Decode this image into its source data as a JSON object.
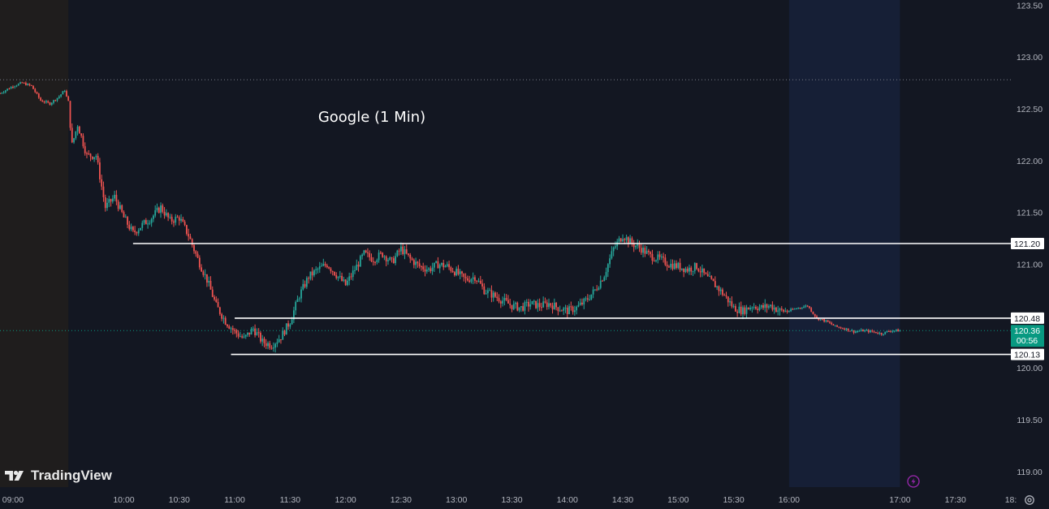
{
  "brand": {
    "name": "TradingView",
    "logo_icon": "tradingview-logo-icon"
  },
  "colors": {
    "background": "#131722",
    "up": "#26a69a",
    "down": "#ef5350",
    "premarket_shade": "#1f1d1d",
    "postmarket_shade": "#161f36",
    "level_line": "#ffffff",
    "price_tag": "#089981"
  },
  "chart_data": {
    "type": "candlestick",
    "title": "Google (1 Min)",
    "xlabel": "",
    "ylabel": "",
    "x_ticks": [
      "09:00",
      "10:00",
      "10:30",
      "11:00",
      "11:30",
      "12:00",
      "12:30",
      "13:00",
      "13:30",
      "14:00",
      "14:30",
      "15:00",
      "15:30",
      "16:00",
      "17:00",
      "17:30",
      "18:"
    ],
    "y_ticks": [
      "123.50",
      "123.00",
      "122.50",
      "122.00",
      "121.50",
      "121.00",
      "120.50",
      "120.00",
      "119.50",
      "119.00"
    ],
    "ylim": [
      118.85,
      123.55
    ],
    "xlim": [
      "08:53",
      "18:00"
    ],
    "grid": false,
    "sessions": {
      "premarket_end": "09:30",
      "regular_end": "16:00",
      "postmarket_end": "17:00"
    },
    "reference_lines": [
      {
        "value": 122.78,
        "style": "dotted",
        "label": ""
      },
      {
        "value": 120.36,
        "style": "dotted",
        "label": ""
      }
    ],
    "horizontal_levels": [
      {
        "value": 121.2,
        "label": "121.20",
        "from": "10:05",
        "to": "18:00"
      },
      {
        "value": 120.48,
        "label": "120.48",
        "from": "11:00",
        "to": "18:00"
      },
      {
        "value": 120.13,
        "label": "120.13",
        "from": "10:58",
        "to": "18:00"
      }
    ],
    "current_price": {
      "value": "120.36",
      "countdown": "00:56"
    },
    "price_path": [
      [
        "08:53",
        122.65
      ],
      [
        "09:00",
        122.72
      ],
      [
        "09:05",
        122.75
      ],
      [
        "09:10",
        122.72
      ],
      [
        "09:15",
        122.58
      ],
      [
        "09:20",
        122.55
      ],
      [
        "09:25",
        122.62
      ],
      [
        "09:28",
        122.68
      ],
      [
        "09:30",
        122.55
      ],
      [
        "09:32",
        122.15
      ],
      [
        "09:35",
        122.35
      ],
      [
        "09:40",
        122.05
      ],
      [
        "09:45",
        122.05
      ],
      [
        "09:50",
        121.55
      ],
      [
        "09:55",
        121.65
      ],
      [
        "10:00",
        121.45
      ],
      [
        "10:05",
        121.3
      ],
      [
        "10:10",
        121.38
      ],
      [
        "10:15",
        121.45
      ],
      [
        "10:20",
        121.55
      ],
      [
        "10:25",
        121.42
      ],
      [
        "10:30",
        121.45
      ],
      [
        "10:35",
        121.28
      ],
      [
        "10:40",
        121.05
      ],
      [
        "10:45",
        120.85
      ],
      [
        "10:50",
        120.6
      ],
      [
        "10:55",
        120.45
      ],
      [
        "11:00",
        120.35
      ],
      [
        "11:05",
        120.28
      ],
      [
        "11:10",
        120.38
      ],
      [
        "11:15",
        120.25
      ],
      [
        "11:20",
        120.22
      ],
      [
        "11:25",
        120.3
      ],
      [
        "11:30",
        120.45
      ],
      [
        "11:35",
        120.7
      ],
      [
        "11:40",
        120.88
      ],
      [
        "11:45",
        120.95
      ],
      [
        "11:50",
        121.0
      ],
      [
        "11:55",
        120.9
      ],
      [
        "12:00",
        120.8
      ],
      [
        "12:05",
        120.95
      ],
      [
        "12:10",
        121.1
      ],
      [
        "12:15",
        121.05
      ],
      [
        "12:20",
        121.1
      ],
      [
        "12:25",
        121.02
      ],
      [
        "12:30",
        121.15
      ],
      [
        "12:35",
        121.05
      ],
      [
        "12:40",
        120.98
      ],
      [
        "12:45",
        120.95
      ],
      [
        "12:50",
        121.0
      ],
      [
        "12:55",
        120.98
      ],
      [
        "13:00",
        120.92
      ],
      [
        "13:05",
        120.85
      ],
      [
        "13:10",
        120.88
      ],
      [
        "13:15",
        120.75
      ],
      [
        "13:20",
        120.7
      ],
      [
        "13:25",
        120.65
      ],
      [
        "13:30",
        120.6
      ],
      [
        "13:35",
        120.58
      ],
      [
        "13:40",
        120.62
      ],
      [
        "13:45",
        120.6
      ],
      [
        "13:50",
        120.62
      ],
      [
        "13:55",
        120.58
      ],
      [
        "14:00",
        120.55
      ],
      [
        "14:05",
        120.58
      ],
      [
        "14:10",
        120.65
      ],
      [
        "14:15",
        120.75
      ],
      [
        "14:20",
        120.9
      ],
      [
        "14:25",
        121.15
      ],
      [
        "14:30",
        121.28
      ],
      [
        "14:35",
        121.2
      ],
      [
        "14:40",
        121.15
      ],
      [
        "14:45",
        121.08
      ],
      [
        "14:50",
        121.05
      ],
      [
        "14:55",
        121.0
      ],
      [
        "15:00",
        120.98
      ],
      [
        "15:05",
        120.95
      ],
      [
        "15:10",
        120.98
      ],
      [
        "15:15",
        120.88
      ],
      [
        "15:20",
        120.8
      ],
      [
        "15:25",
        120.7
      ],
      [
        "15:30",
        120.58
      ],
      [
        "15:35",
        120.55
      ],
      [
        "15:40",
        120.6
      ],
      [
        "15:45",
        120.58
      ],
      [
        "15:50",
        120.6
      ],
      [
        "15:55",
        120.55
      ],
      [
        "16:00",
        120.55
      ],
      [
        "16:05",
        120.58
      ],
      [
        "16:10",
        120.6
      ],
      [
        "16:15",
        120.48
      ],
      [
        "16:20",
        120.45
      ],
      [
        "16:25",
        120.4
      ],
      [
        "16:30",
        120.38
      ],
      [
        "16:35",
        120.35
      ],
      [
        "16:40",
        120.36
      ],
      [
        "16:45",
        120.35
      ],
      [
        "16:50",
        120.33
      ],
      [
        "16:55",
        120.36
      ],
      [
        "17:00",
        120.36
      ]
    ]
  }
}
